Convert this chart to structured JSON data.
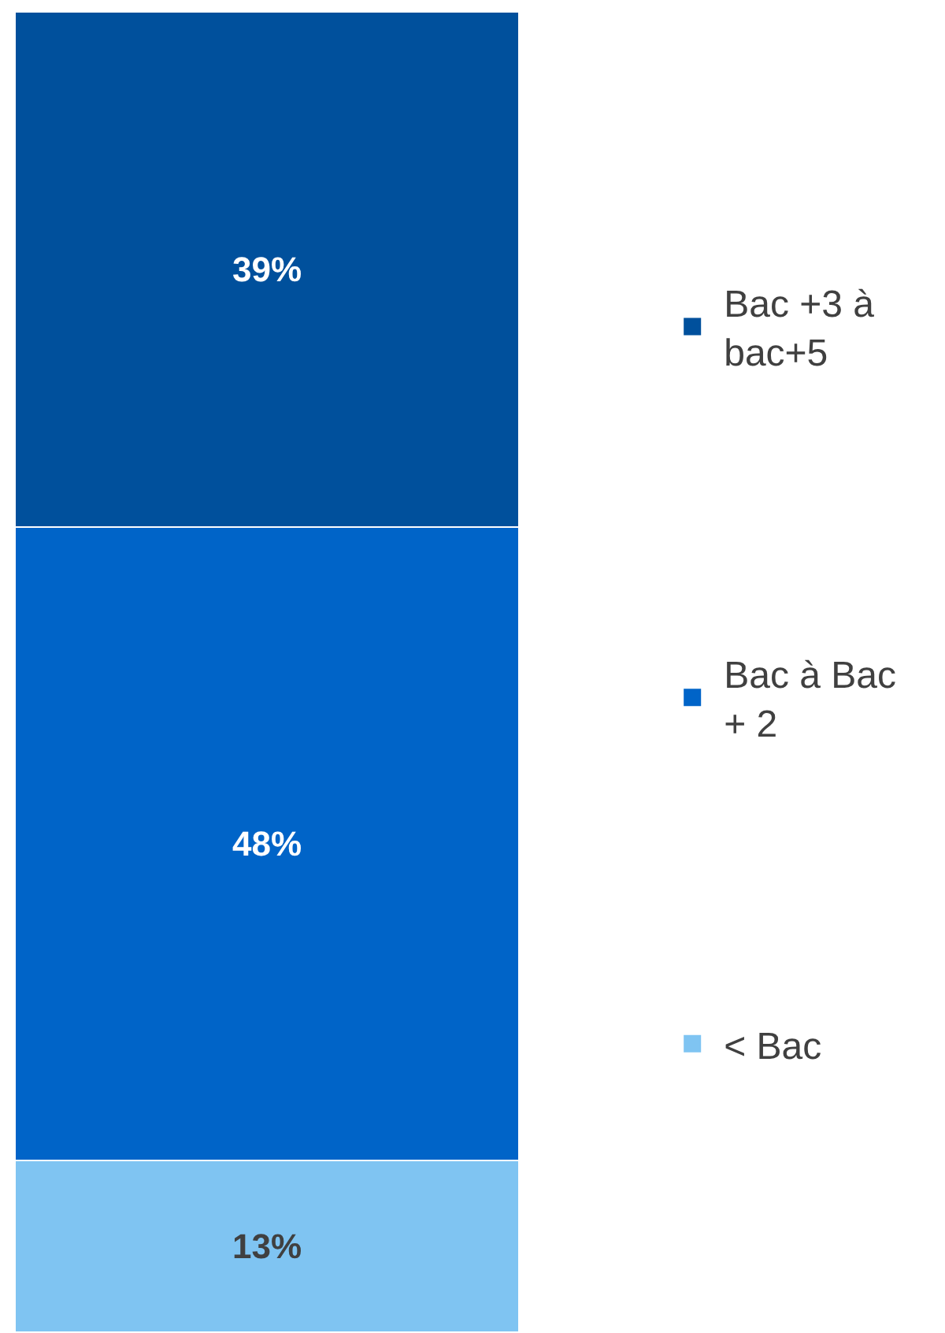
{
  "chart_data": {
    "type": "bar",
    "stacked": true,
    "categories": [
      null
    ],
    "series": [
      {
        "name": "< Bac",
        "color": "#7fc4f2",
        "values": [
          13
        ],
        "value_labels": [
          "13%"
        ]
      },
      {
        "name": "Bac à Bac + 2",
        "color": "#0064c8",
        "values": [
          48
        ],
        "value_labels": [
          "48%"
        ]
      },
      {
        "name": "Bac +3 à bac+5",
        "color": "#00509c",
        "values": [
          39
        ],
        "value_labels": [
          "39%"
        ]
      }
    ],
    "legend": "right"
  }
}
